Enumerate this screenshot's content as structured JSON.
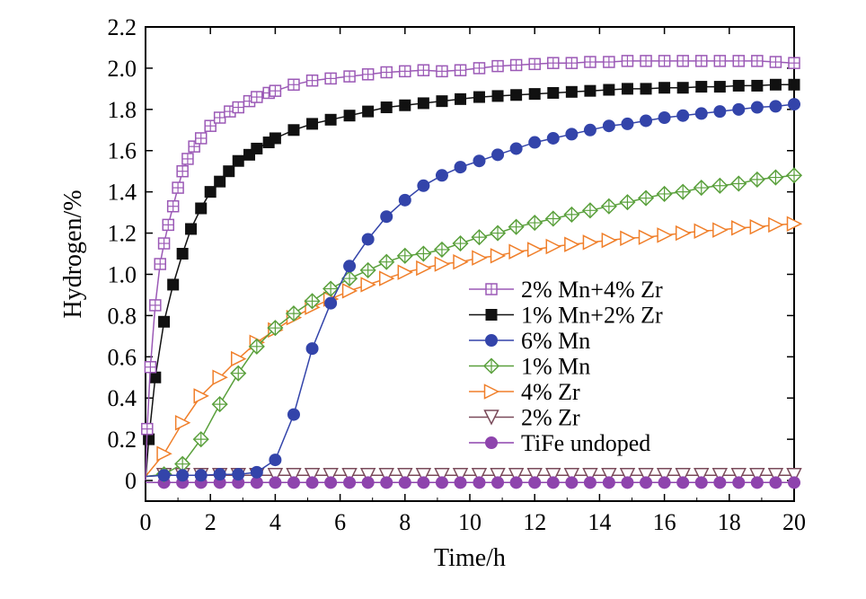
{
  "chart_data": {
    "type": "line",
    "title": "",
    "xlabel": "Time/h",
    "ylabel": "Hydrogen/%",
    "xlim": [
      0,
      20
    ],
    "ylim": [
      -0.1,
      2.2
    ],
    "xticks": [
      0,
      2,
      4,
      6,
      8,
      10,
      12,
      14,
      16,
      18,
      20
    ],
    "xtick_labels": [
      "0",
      "2",
      "4",
      "6",
      "8",
      "10",
      "12",
      "14",
      "16",
      "18",
      "20"
    ],
    "yticks": [
      0,
      0.2,
      0.4,
      0.6,
      0.8,
      1.0,
      1.2,
      1.4,
      1.6,
      1.8,
      2.0,
      2.2
    ],
    "ytick_labels": [
      "0",
      "0.2",
      "0.4",
      "0.6",
      "0.8",
      "1.0",
      "1.2",
      "1.4",
      "1.6",
      "1.8",
      "2.0",
      "2.2"
    ],
    "grid": false,
    "legend_position": "center-right",
    "series": [
      {
        "name": "2% Mn+4% Zr",
        "color": "#9b59b6",
        "marker": "square-plus-open",
        "x": [
          0,
          0.05,
          0.15,
          0.3,
          0.45,
          0.57,
          0.7,
          0.85,
          1.0,
          1.14,
          1.3,
          1.5,
          1.71,
          2.0,
          2.29,
          2.6,
          2.86,
          3.2,
          3.43,
          3.8,
          4.0,
          4.57,
          5.14,
          5.71,
          6.29,
          6.86,
          7.43,
          8.0,
          8.57,
          9.14,
          9.71,
          10.29,
          10.86,
          11.43,
          12.0,
          12.57,
          13.14,
          13.71,
          14.29,
          14.86,
          15.43,
          16.0,
          16.57,
          17.14,
          17.71,
          18.29,
          18.86,
          19.43,
          20.0
        ],
        "y": [
          0.0,
          0.25,
          0.55,
          0.85,
          1.05,
          1.15,
          1.24,
          1.33,
          1.42,
          1.5,
          1.56,
          1.62,
          1.66,
          1.72,
          1.76,
          1.79,
          1.81,
          1.84,
          1.86,
          1.88,
          1.89,
          1.92,
          1.94,
          1.95,
          1.96,
          1.97,
          1.98,
          1.985,
          1.99,
          1.985,
          1.99,
          2.0,
          2.01,
          2.015,
          2.02,
          2.025,
          2.025,
          2.03,
          2.03,
          2.035,
          2.035,
          2.035,
          2.035,
          2.035,
          2.035,
          2.035,
          2.035,
          2.03,
          2.025
        ]
      },
      {
        "name": "1% Mn+2% Zr",
        "color": "#111111",
        "marker": "square-filled",
        "x": [
          0,
          0.1,
          0.3,
          0.57,
          0.85,
          1.14,
          1.4,
          1.71,
          2.0,
          2.29,
          2.57,
          2.86,
          3.2,
          3.43,
          3.8,
          4.0,
          4.57,
          5.14,
          5.71,
          6.29,
          6.86,
          7.43,
          8.0,
          8.57,
          9.14,
          9.71,
          10.29,
          10.86,
          11.43,
          12.0,
          12.57,
          13.14,
          13.71,
          14.29,
          14.86,
          15.43,
          16.0,
          16.57,
          17.14,
          17.71,
          18.29,
          18.86,
          19.43,
          20.0
        ],
        "y": [
          0.0,
          0.2,
          0.5,
          0.77,
          0.95,
          1.1,
          1.22,
          1.32,
          1.4,
          1.45,
          1.5,
          1.55,
          1.58,
          1.61,
          1.64,
          1.66,
          1.7,
          1.73,
          1.75,
          1.77,
          1.79,
          1.81,
          1.82,
          1.83,
          1.84,
          1.85,
          1.86,
          1.865,
          1.87,
          1.875,
          1.88,
          1.885,
          1.89,
          1.895,
          1.9,
          1.9,
          1.905,
          1.905,
          1.91,
          1.91,
          1.915,
          1.915,
          1.92,
          1.92
        ]
      },
      {
        "name": "6% Mn",
        "color": "#3344aa",
        "marker": "circle-filled",
        "x": [
          0,
          0.57,
          1.14,
          1.71,
          2.29,
          2.86,
          3.43,
          4.0,
          4.57,
          5.14,
          5.71,
          6.29,
          6.86,
          7.43,
          8.0,
          8.57,
          9.14,
          9.71,
          10.29,
          10.86,
          11.43,
          12.0,
          12.57,
          13.14,
          13.71,
          14.29,
          14.86,
          15.43,
          16.0,
          16.57,
          17.14,
          17.71,
          18.29,
          18.86,
          19.43,
          20.0
        ],
        "y": [
          0.02,
          0.025,
          0.025,
          0.025,
          0.03,
          0.03,
          0.04,
          0.1,
          0.32,
          0.64,
          0.86,
          1.04,
          1.17,
          1.28,
          1.36,
          1.43,
          1.48,
          1.52,
          1.55,
          1.58,
          1.61,
          1.64,
          1.66,
          1.68,
          1.7,
          1.72,
          1.73,
          1.745,
          1.76,
          1.77,
          1.78,
          1.79,
          1.8,
          1.81,
          1.815,
          1.825
        ]
      },
      {
        "name": "1% Mn",
        "color": "#5aa03c",
        "marker": "diamond-plus-open",
        "x": [
          0,
          0.57,
          1.14,
          1.71,
          2.29,
          2.86,
          3.43,
          4.0,
          4.57,
          5.14,
          5.71,
          6.29,
          6.86,
          7.43,
          8.0,
          8.57,
          9.14,
          9.71,
          10.29,
          10.86,
          11.43,
          12.0,
          12.57,
          13.14,
          13.71,
          14.29,
          14.86,
          15.43,
          16.0,
          16.57,
          17.14,
          17.71,
          18.29,
          18.86,
          19.43,
          20.0
        ],
        "y": [
          0.02,
          0.03,
          0.08,
          0.2,
          0.37,
          0.52,
          0.65,
          0.74,
          0.81,
          0.87,
          0.93,
          0.98,
          1.02,
          1.06,
          1.09,
          1.1,
          1.12,
          1.15,
          1.18,
          1.2,
          1.23,
          1.25,
          1.27,
          1.29,
          1.31,
          1.33,
          1.35,
          1.37,
          1.39,
          1.4,
          1.42,
          1.43,
          1.44,
          1.46,
          1.47,
          1.48
        ]
      },
      {
        "name": "4% Zr",
        "color": "#f07f2a",
        "marker": "triangle-right-open",
        "x": [
          0,
          0.57,
          1.14,
          1.71,
          2.29,
          2.86,
          3.43,
          4.0,
          4.57,
          5.14,
          5.71,
          6.29,
          6.86,
          7.43,
          8.0,
          8.57,
          9.14,
          9.71,
          10.29,
          10.86,
          11.43,
          12.0,
          12.57,
          13.14,
          13.71,
          14.29,
          14.86,
          15.43,
          16.0,
          16.57,
          17.14,
          17.71,
          18.29,
          18.86,
          19.43,
          20.0
        ],
        "y": [
          0.02,
          0.13,
          0.28,
          0.41,
          0.5,
          0.59,
          0.67,
          0.73,
          0.79,
          0.84,
          0.88,
          0.92,
          0.95,
          0.98,
          1.01,
          1.03,
          1.05,
          1.06,
          1.08,
          1.09,
          1.11,
          1.12,
          1.135,
          1.145,
          1.155,
          1.165,
          1.175,
          1.18,
          1.19,
          1.2,
          1.21,
          1.215,
          1.225,
          1.23,
          1.24,
          1.245
        ]
      },
      {
        "name": "2% Zr",
        "color": "#7a4a5a",
        "marker": "triangle-down-open",
        "x": [
          0,
          0.57,
          1.14,
          1.71,
          2.29,
          2.86,
          3.43,
          4.0,
          4.57,
          5.14,
          5.71,
          6.29,
          6.86,
          7.43,
          8.0,
          8.57,
          9.14,
          9.71,
          10.29,
          10.86,
          11.43,
          12.0,
          12.57,
          13.14,
          13.71,
          14.29,
          14.86,
          15.43,
          16.0,
          16.57,
          17.14,
          17.71,
          18.29,
          18.86,
          19.43,
          20.0
        ],
        "y": [
          0.02,
          0.025,
          0.025,
          0.025,
          0.025,
          0.025,
          0.025,
          0.025,
          0.025,
          0.025,
          0.025,
          0.025,
          0.025,
          0.025,
          0.025,
          0.025,
          0.025,
          0.025,
          0.025,
          0.025,
          0.025,
          0.025,
          0.025,
          0.025,
          0.025,
          0.025,
          0.025,
          0.025,
          0.025,
          0.025,
          0.025,
          0.025,
          0.025,
          0.025,
          0.025,
          0.025
        ]
      },
      {
        "name": "TiFe undoped",
        "color": "#8e44ad",
        "marker": "circle-filled",
        "x": [
          0,
          0.57,
          1.14,
          1.71,
          2.29,
          2.86,
          3.43,
          4.0,
          4.57,
          5.14,
          5.71,
          6.29,
          6.86,
          7.43,
          8.0,
          8.57,
          9.14,
          9.71,
          10.29,
          10.86,
          11.43,
          12.0,
          12.57,
          13.14,
          13.71,
          14.29,
          14.86,
          15.43,
          16.0,
          16.57,
          17.14,
          17.71,
          18.29,
          18.86,
          19.43,
          20.0
        ],
        "y": [
          -0.01,
          -0.01,
          -0.01,
          -0.01,
          -0.01,
          -0.01,
          -0.01,
          -0.01,
          -0.01,
          -0.01,
          -0.01,
          -0.01,
          -0.01,
          -0.01,
          -0.01,
          -0.01,
          -0.01,
          -0.01,
          -0.01,
          -0.01,
          -0.01,
          -0.01,
          -0.01,
          -0.01,
          -0.01,
          -0.01,
          -0.01,
          -0.01,
          -0.01,
          -0.01,
          -0.01,
          -0.01,
          -0.01,
          -0.01,
          -0.01,
          -0.01
        ]
      }
    ]
  }
}
